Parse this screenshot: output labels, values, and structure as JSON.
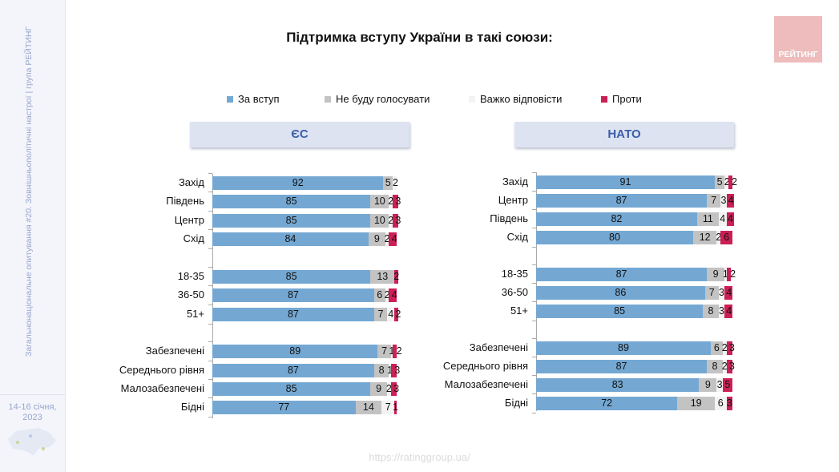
{
  "title": "Підтримка вступу України в такі союзи:",
  "logo": "РЕЙТИНГ",
  "sidebar": {
    "vertical_text": "Загальнонаціональне опитування #20. Зовнішньополітичні настрої | група РЕЙТИНГ",
    "date": "14-16 січня, 2023"
  },
  "footer_url": "https://ratinggroup.ua/",
  "colors": {
    "support": "#74a8d3",
    "wont_vote": "#c3c3c3",
    "hard_to_say": "#f3f3f3",
    "against": "#cc1f55"
  },
  "chart_data": [
    {
      "type": "bar",
      "stacked": true,
      "orientation": "horizontal",
      "title": "ЄС",
      "series_names": [
        "За вступ",
        "Не буду голосувати",
        "Важко відповісти",
        "Проти"
      ],
      "groups": [
        {
          "rows": [
            {
              "label": "Захід",
              "values": [
                92,
                5,
                2,
                null
              ]
            },
            {
              "label": "Південь",
              "values": [
                85,
                10,
                2,
                3
              ]
            },
            {
              "label": "Центр",
              "values": [
                85,
                10,
                2,
                3
              ]
            },
            {
              "label": "Схід",
              "values": [
                84,
                9,
                2,
                4
              ]
            }
          ]
        },
        {
          "rows": [
            {
              "label": "18-35",
              "values": [
                85,
                13,
                null,
                2
              ]
            },
            {
              "label": "36-50",
              "values": [
                87,
                6,
                2,
                4
              ]
            },
            {
              "label": "51+",
              "values": [
                87,
                7,
                4,
                2
              ]
            }
          ]
        },
        {
          "rows": [
            {
              "label": "Забезпечені",
              "values": [
                89,
                7,
                1,
                2
              ]
            },
            {
              "label": "Середнього рівня",
              "values": [
                87,
                8,
                1,
                3
              ]
            },
            {
              "label": "Малозабезпечені",
              "values": [
                85,
                9,
                2,
                3
              ]
            },
            {
              "label": "Бідні",
              "values": [
                77,
                14,
                7,
                1
              ]
            }
          ]
        }
      ]
    },
    {
      "type": "bar",
      "stacked": true,
      "orientation": "horizontal",
      "title": "НАТО",
      "series_names": [
        "За вступ",
        "Не буду голосувати",
        "Важко відповісти",
        "Проти"
      ],
      "groups": [
        {
          "rows": [
            {
              "label": "Захід",
              "values": [
                91,
                5,
                2,
                2
              ]
            },
            {
              "label": "Центр",
              "values": [
                87,
                7,
                3,
                4
              ]
            },
            {
              "label": "Південь",
              "values": [
                82,
                11,
                4,
                4
              ]
            },
            {
              "label": "Схід",
              "values": [
                80,
                12,
                2,
                6
              ]
            }
          ]
        },
        {
          "rows": [
            {
              "label": "18-35",
              "values": [
                87,
                9,
                1,
                2
              ]
            },
            {
              "label": "36-50",
              "values": [
                86,
                7,
                3,
                4
              ]
            },
            {
              "label": "51+",
              "values": [
                85,
                8,
                3,
                4
              ]
            }
          ]
        },
        {
          "rows": [
            {
              "label": "Забезпечені",
              "values": [
                89,
                6,
                2,
                3
              ]
            },
            {
              "label": "Середнього рівня",
              "values": [
                87,
                8,
                2,
                3
              ]
            },
            {
              "label": "Малозабезпечені",
              "values": [
                83,
                9,
                3,
                5
              ]
            },
            {
              "label": "Бідні",
              "values": [
                72,
                19,
                6,
                3
              ]
            }
          ]
        }
      ]
    }
  ]
}
